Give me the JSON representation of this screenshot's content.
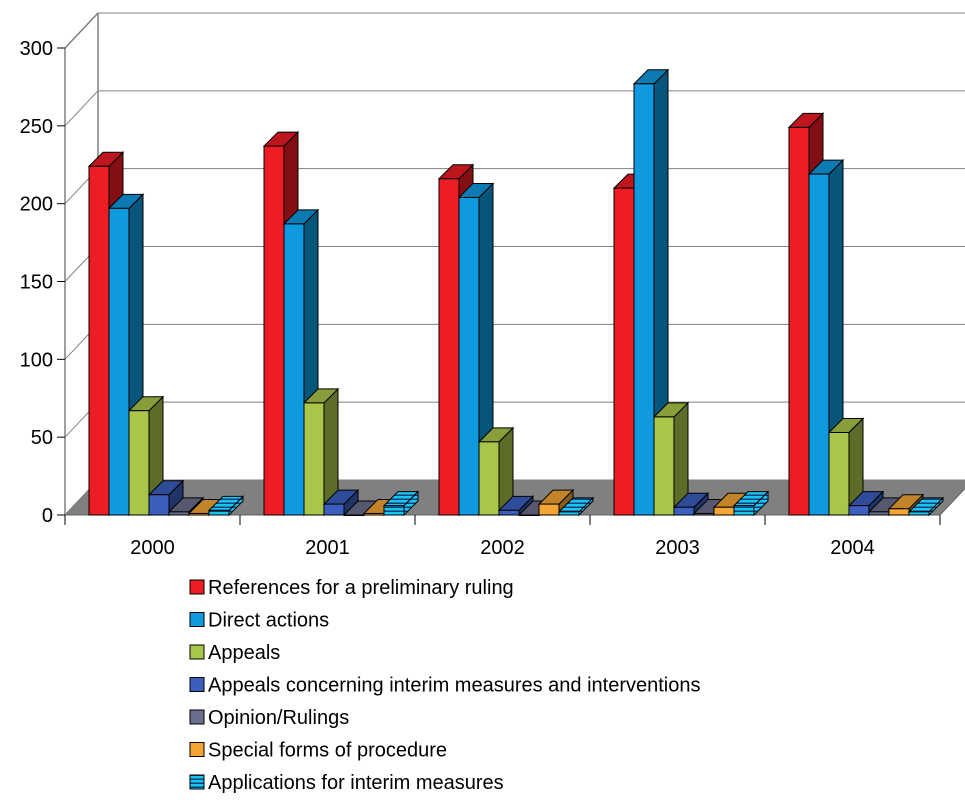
{
  "chart_data": {
    "type": "bar",
    "title": "",
    "xlabel": "",
    "ylabel": "",
    "ylim": [
      0,
      300
    ],
    "yticks": [
      0,
      50,
      100,
      150,
      200,
      250,
      300
    ],
    "grid": true,
    "legend_position": "bottom",
    "categories": [
      "2000",
      "2001",
      "2002",
      "2003",
      "2004"
    ],
    "series": [
      {
        "name": "References for a preliminary ruling",
        "color": "#ee1c25",
        "values": [
          224,
          237,
          216,
          210,
          249
        ]
      },
      {
        "name": "Direct actions",
        "color": "#0f9ae0",
        "values": [
          197,
          187,
          204,
          277,
          219
        ]
      },
      {
        "name": "Appeals",
        "color": "#a9c54a",
        "values": [
          67,
          72,
          47,
          63,
          53
        ]
      },
      {
        "name": "Appeals concerning interim measures and interventions",
        "color": "#3b5fbf",
        "values": [
          13,
          7,
          3,
          5,
          6
        ]
      },
      {
        "name": "Opinion/Rulings",
        "color": "#6b6e8c",
        "values": [
          2,
          0,
          0,
          1,
          2
        ]
      },
      {
        "name": "Special forms of procedure",
        "color": "#f4a533",
        "values": [
          1,
          1,
          7,
          5,
          4
        ]
      },
      {
        "name": "Applications for interim measures",
        "color": "#19c5ef",
        "pattern": "stripes",
        "values": [
          3,
          6,
          2,
          6,
          2
        ]
      }
    ]
  }
}
